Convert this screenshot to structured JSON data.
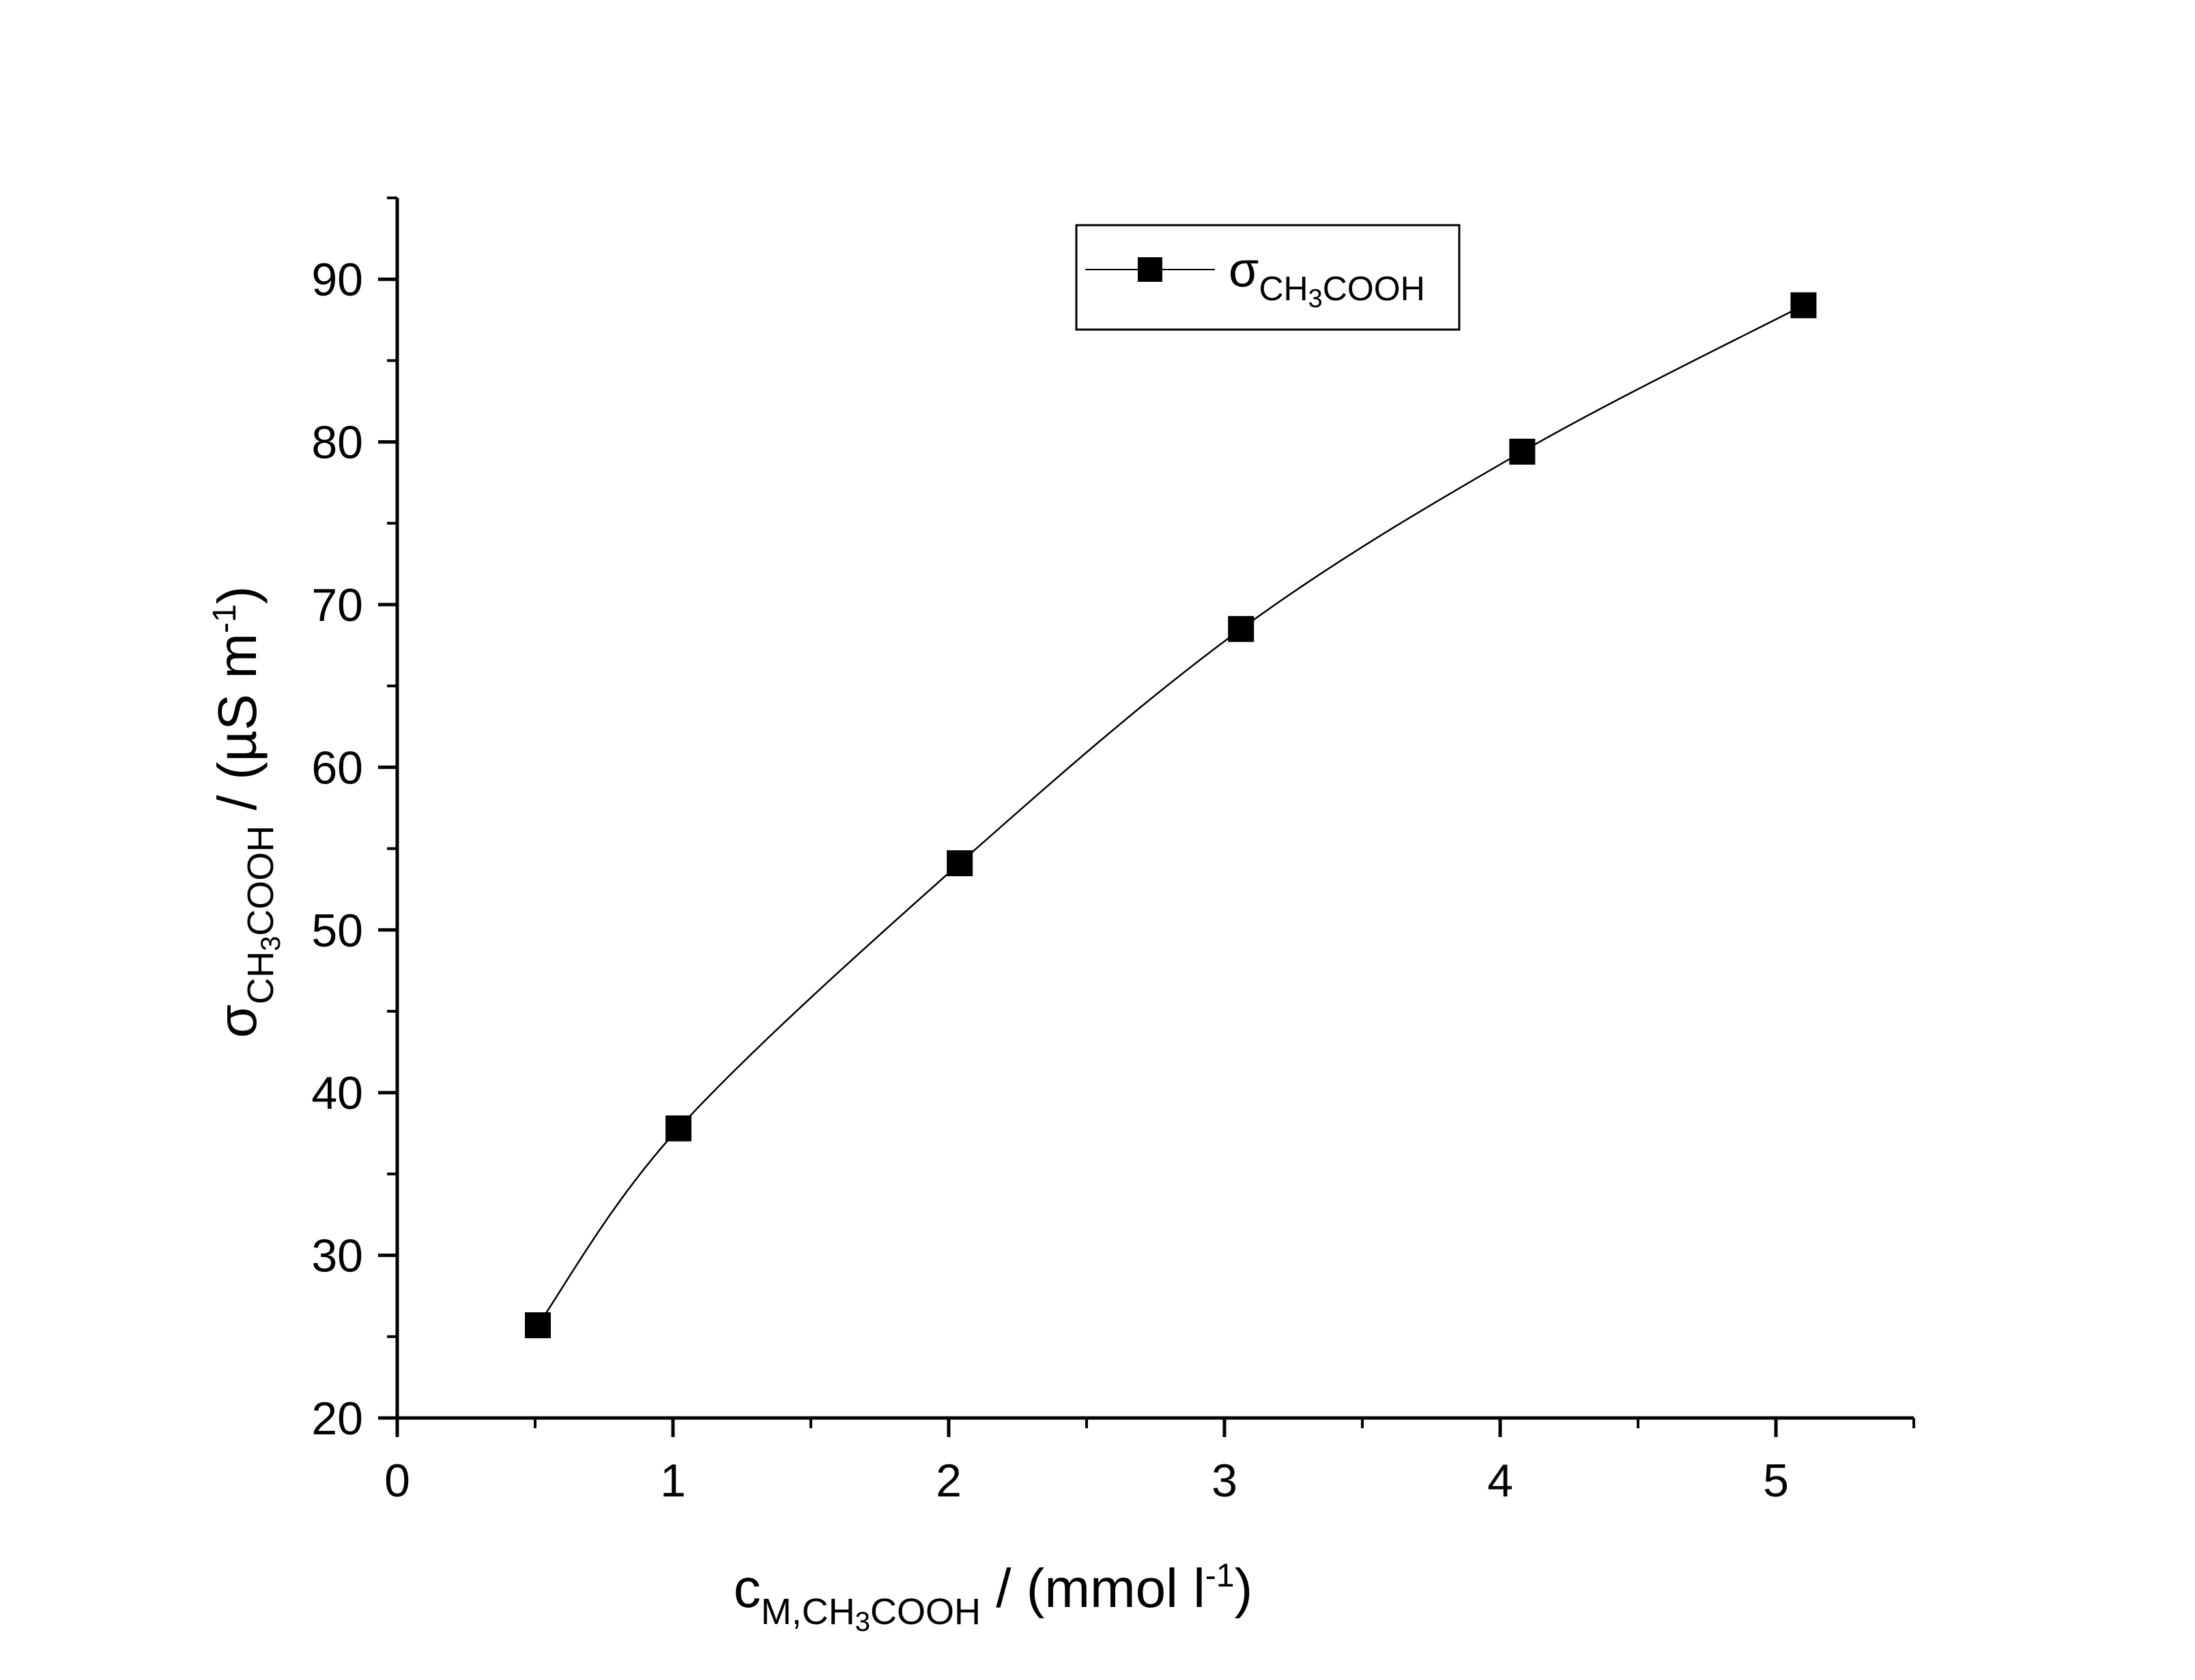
{
  "chart_data": {
    "type": "line",
    "x_axis": {
      "min": 0,
      "max": 5.5,
      "ticks": [
        0,
        1,
        2,
        3,
        4,
        5
      ],
      "tick_labels": [
        "0",
        "1",
        "2",
        "3",
        "4",
        "5"
      ],
      "minor_ticks": [
        0.5,
        1.5,
        2.5,
        3.5,
        4.5,
        5.5
      ],
      "label": {
        "main": "c",
        "sub_parts": [
          "M,CH",
          "3",
          "COOH"
        ],
        "rest": " / (mmol l",
        "sup": "-1",
        "close": ")"
      }
    },
    "y_axis": {
      "min": 20,
      "max": 95,
      "ticks": [
        20,
        30,
        40,
        50,
        60,
        70,
        80,
        90
      ],
      "tick_labels": [
        "20",
        "30",
        "40",
        "50",
        "60",
        "70",
        "80",
        "90"
      ],
      "minor_ticks": [
        25,
        35,
        45,
        55,
        65,
        75,
        85,
        95
      ],
      "label": {
        "main": "σ",
        "sub_parts": [
          "CH",
          "3",
          "COOH"
        ],
        "rest": " / (µS m",
        "sup": "-1",
        "close": ")"
      }
    },
    "series": [
      {
        "name": {
          "main": "σ",
          "sub_parts": [
            "CH",
            "3",
            "COOH"
          ]
        },
        "marker": "square",
        "color": "#000000",
        "x": [
          0.51,
          1.02,
          2.04,
          3.06,
          4.08,
          5.1
        ],
        "y": [
          25.7,
          37.8,
          54.1,
          68.5,
          79.4,
          88.4
        ]
      }
    ],
    "legend_position": "top-right",
    "grid": false
  }
}
